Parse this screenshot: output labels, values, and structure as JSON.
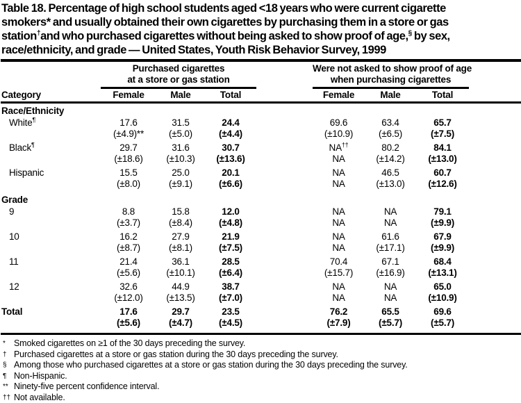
{
  "title": {
    "lines": [
      [
        {
          "t": "Table 18. Percentage of high school students aged <18 years who were current cigarette"
        }
      ],
      [
        {
          "t": "smokers* and usually obtained their own cigarettes by purchasing them in a store or gas"
        }
      ],
      [
        {
          "t": "station"
        },
        {
          "t": "†",
          "sup": true
        },
        {
          "t": "and who purchased cigarettes without being asked to show proof of age,"
        },
        {
          "t": "§",
          "sup": true
        },
        {
          "t": " by sex,"
        }
      ],
      [
        {
          "t": "race/ethnicity, and grade — United States, Youth Risk Behavior Survey, 1999"
        }
      ]
    ]
  },
  "table": {
    "category_header": "Category",
    "groups": [
      {
        "line1": "Purchased cigarettes",
        "line2": "at a store or gas station",
        "columns": [
          "Female",
          "Male",
          "Total"
        ]
      },
      {
        "line1": "Were not asked to show proof of age",
        "line2": "when purchasing cigarettes",
        "columns": [
          "Female",
          "Male",
          "Total"
        ]
      }
    ],
    "sections": [
      {
        "header": "Race/Ethnicity",
        "rows": [
          {
            "label": "White",
            "label_sup": "¶",
            "values": [
              "17.6",
              "31.5",
              "24.4",
              "69.6",
              "63.4",
              "65.7"
            ],
            "ci": [
              "(±4.9)**",
              "(±5.0)",
              "(±4.4)",
              "(±10.9)",
              "(±6.5)",
              "(±7.5)"
            ]
          },
          {
            "label": "Black",
            "label_sup": "¶",
            "values": [
              "29.7",
              "31.6",
              "30.7",
              {
                "t": "NA",
                "sup": "††"
              },
              "80.2",
              "84.1"
            ],
            "ci": [
              "(±18.6)",
              "(±10.3)",
              "(±13.6)",
              "NA",
              "(±14.2)",
              "(±13.0)"
            ]
          },
          {
            "label": "Hispanic",
            "values": [
              "15.5",
              "25.0",
              "20.1",
              "NA",
              "46.5",
              "60.7"
            ],
            "ci": [
              "(±8.0)",
              "(±9.1)",
              "(±6.6)",
              "NA",
              "(±13.0)",
              "(±12.6)"
            ]
          }
        ]
      },
      {
        "header": "Grade",
        "rows": [
          {
            "label": "9",
            "values": [
              "8.8",
              "15.8",
              "12.0",
              "NA",
              "NA",
              "79.1"
            ],
            "ci": [
              "(±3.7)",
              "(±8.4)",
              "(±4.8)",
              "NA",
              "NA",
              "(±9.9)"
            ]
          },
          {
            "label": "10",
            "values": [
              "16.2",
              "27.9",
              "21.9",
              "NA",
              "61.6",
              "67.9"
            ],
            "ci": [
              "(±8.7)",
              "(±8.1)",
              "(±7.5)",
              "NA",
              "(±17.1)",
              "(±9.9)"
            ]
          },
          {
            "label": "11",
            "values": [
              "21.4",
              "36.1",
              "28.5",
              "70.4",
              "67.1",
              "68.4"
            ],
            "ci": [
              "(±5.6)",
              "(±10.1)",
              "(±6.4)",
              "(±15.7)",
              "(±16.9)",
              "(±13.1)"
            ]
          },
          {
            "label": "12",
            "values": [
              "32.6",
              "44.9",
              "38.7",
              "NA",
              "NA",
              "65.0"
            ],
            "ci": [
              "(±12.0)",
              "(±13.5)",
              "(±7.0)",
              "NA",
              "NA",
              "(±10.9)"
            ]
          }
        ]
      }
    ],
    "total": {
      "label": "Total",
      "values": [
        "17.6",
        "29.7",
        "23.5",
        "76.2",
        "65.5",
        "69.6"
      ],
      "ci": [
        "(±5.6)",
        "(±4.7)",
        "(±4.5)",
        "(±7.9)",
        "(±5.7)",
        "(±5.7)"
      ]
    }
  },
  "footnotes": [
    {
      "marker": "*",
      "text": "Smoked cigarettes on ≥1 of the 30 days preceding the survey."
    },
    {
      "marker": "†",
      "text": "Purchased cigarettes at a store or gas station during the 30 days preceding the survey."
    },
    {
      "marker": "§",
      "text": "Among those who purchased cigarettes at a store or gas station during the 30 days preceding the survey."
    },
    {
      "marker": "¶",
      "text": "Non-Hispanic."
    },
    {
      "marker": "**",
      "text": "Ninety-five percent confidence interval."
    },
    {
      "marker": "††",
      "text": "Not available."
    }
  ]
}
